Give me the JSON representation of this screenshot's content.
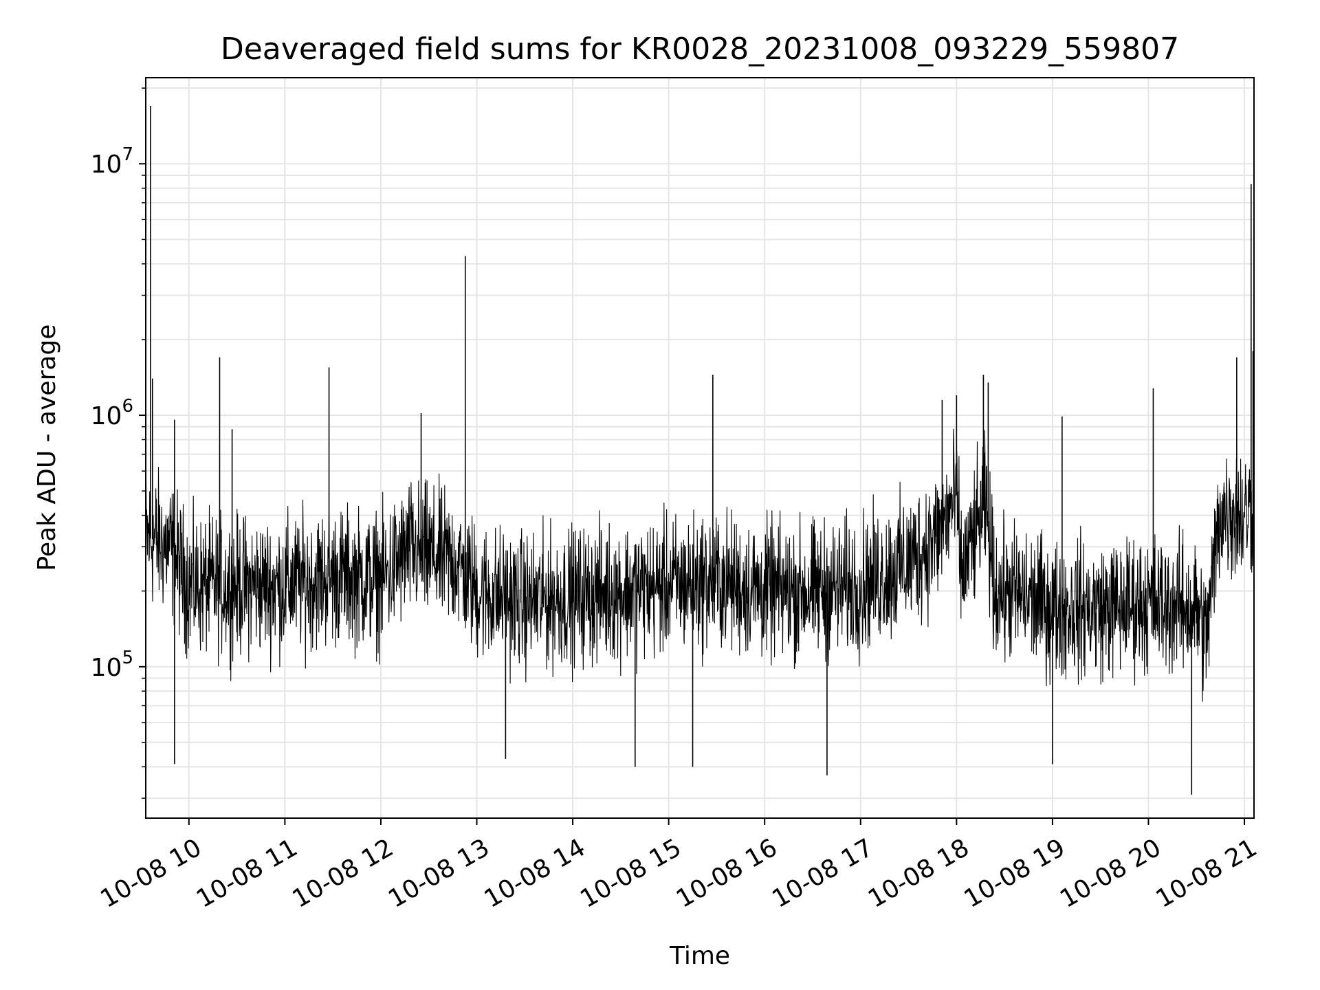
{
  "chart_data": {
    "type": "line",
    "title": "Deaveraged field sums for KR0028_20231008_093229_559807",
    "xlabel": "Time",
    "ylabel": "Peak ADU - average",
    "yscale": "log",
    "ylim": [
      25000,
      22000000
    ],
    "xlim_hours": [
      9.55,
      21.1
    ],
    "grid": true,
    "x_ticks": [
      {
        "value": 10,
        "label": "10-08 10"
      },
      {
        "value": 11,
        "label": "10-08 11"
      },
      {
        "value": 12,
        "label": "10-08 12"
      },
      {
        "value": 13,
        "label": "10-08 13"
      },
      {
        "value": 14,
        "label": "10-08 14"
      },
      {
        "value": 15,
        "label": "10-08 15"
      },
      {
        "value": 16,
        "label": "10-08 16"
      },
      {
        "value": 17,
        "label": "10-08 17"
      },
      {
        "value": 18,
        "label": "10-08 18"
      },
      {
        "value": 19,
        "label": "10-08 19"
      },
      {
        "value": 20,
        "label": "10-08 20"
      },
      {
        "value": 21,
        "label": "10-08 21"
      }
    ],
    "y_ticks": [
      {
        "value": 100000,
        "base": "10",
        "exp": "5"
      },
      {
        "value": 1000000,
        "base": "10",
        "exp": "6"
      },
      {
        "value": 10000000,
        "base": "10",
        "exp": "7"
      }
    ],
    "baseline": [
      [
        9.55,
        330000
      ],
      [
        9.8,
        300000
      ],
      [
        10.0,
        210000
      ],
      [
        10.5,
        210000
      ],
      [
        11.0,
        210000
      ],
      [
        11.5,
        230000
      ],
      [
        12.0,
        220000
      ],
      [
        12.3,
        290000
      ],
      [
        12.8,
        260000
      ],
      [
        13.0,
        200000
      ],
      [
        13.5,
        180000
      ],
      [
        14.0,
        190000
      ],
      [
        14.5,
        200000
      ],
      [
        15.0,
        210000
      ],
      [
        15.5,
        220000
      ],
      [
        16.0,
        200000
      ],
      [
        16.5,
        200000
      ],
      [
        17.0,
        210000
      ],
      [
        17.5,
        260000
      ],
      [
        17.8,
        330000
      ],
      [
        18.0,
        480000
      ],
      [
        18.05,
        230000
      ],
      [
        18.3,
        440000
      ],
      [
        18.4,
        200000
      ],
      [
        18.7,
        190000
      ],
      [
        19.0,
        170000
      ],
      [
        19.5,
        170000
      ],
      [
        20.0,
        180000
      ],
      [
        20.5,
        170000
      ],
      [
        20.6,
        130000
      ],
      [
        20.75,
        420000
      ],
      [
        21.0,
        400000
      ],
      [
        21.1,
        450000
      ]
    ],
    "spikes": [
      {
        "x": 9.6,
        "y": 17000000
      },
      {
        "x": 9.62,
        "y": 1400000
      },
      {
        "x": 9.85,
        "y": 960000
      },
      {
        "x": 10.32,
        "y": 1700000
      },
      {
        "x": 10.45,
        "y": 880000
      },
      {
        "x": 11.46,
        "y": 1550000
      },
      {
        "x": 12.42,
        "y": 1020000
      },
      {
        "x": 12.88,
        "y": 4300000
      },
      {
        "x": 15.46,
        "y": 1450000
      },
      {
        "x": 17.85,
        "y": 1150000
      },
      {
        "x": 18.0,
        "y": 1200000
      },
      {
        "x": 18.28,
        "y": 1450000
      },
      {
        "x": 18.33,
        "y": 1350000
      },
      {
        "x": 19.1,
        "y": 990000
      },
      {
        "x": 20.05,
        "y": 1280000
      },
      {
        "x": 20.92,
        "y": 1700000
      },
      {
        "x": 21.07,
        "y": 8300000
      },
      {
        "x": 21.09,
        "y": 1800000
      }
    ],
    "dips": [
      {
        "x": 9.85,
        "y": 41000
      },
      {
        "x": 13.3,
        "y": 43000
      },
      {
        "x": 14.65,
        "y": 40000
      },
      {
        "x": 15.25,
        "y": 40000
      },
      {
        "x": 16.65,
        "y": 37000
      },
      {
        "x": 19.0,
        "y": 41000
      },
      {
        "x": 20.45,
        "y": 31000
      }
    ],
    "noise_log10_amplitude": 0.25,
    "line_color": "#000000",
    "grid_color": "#e5e5e5"
  }
}
